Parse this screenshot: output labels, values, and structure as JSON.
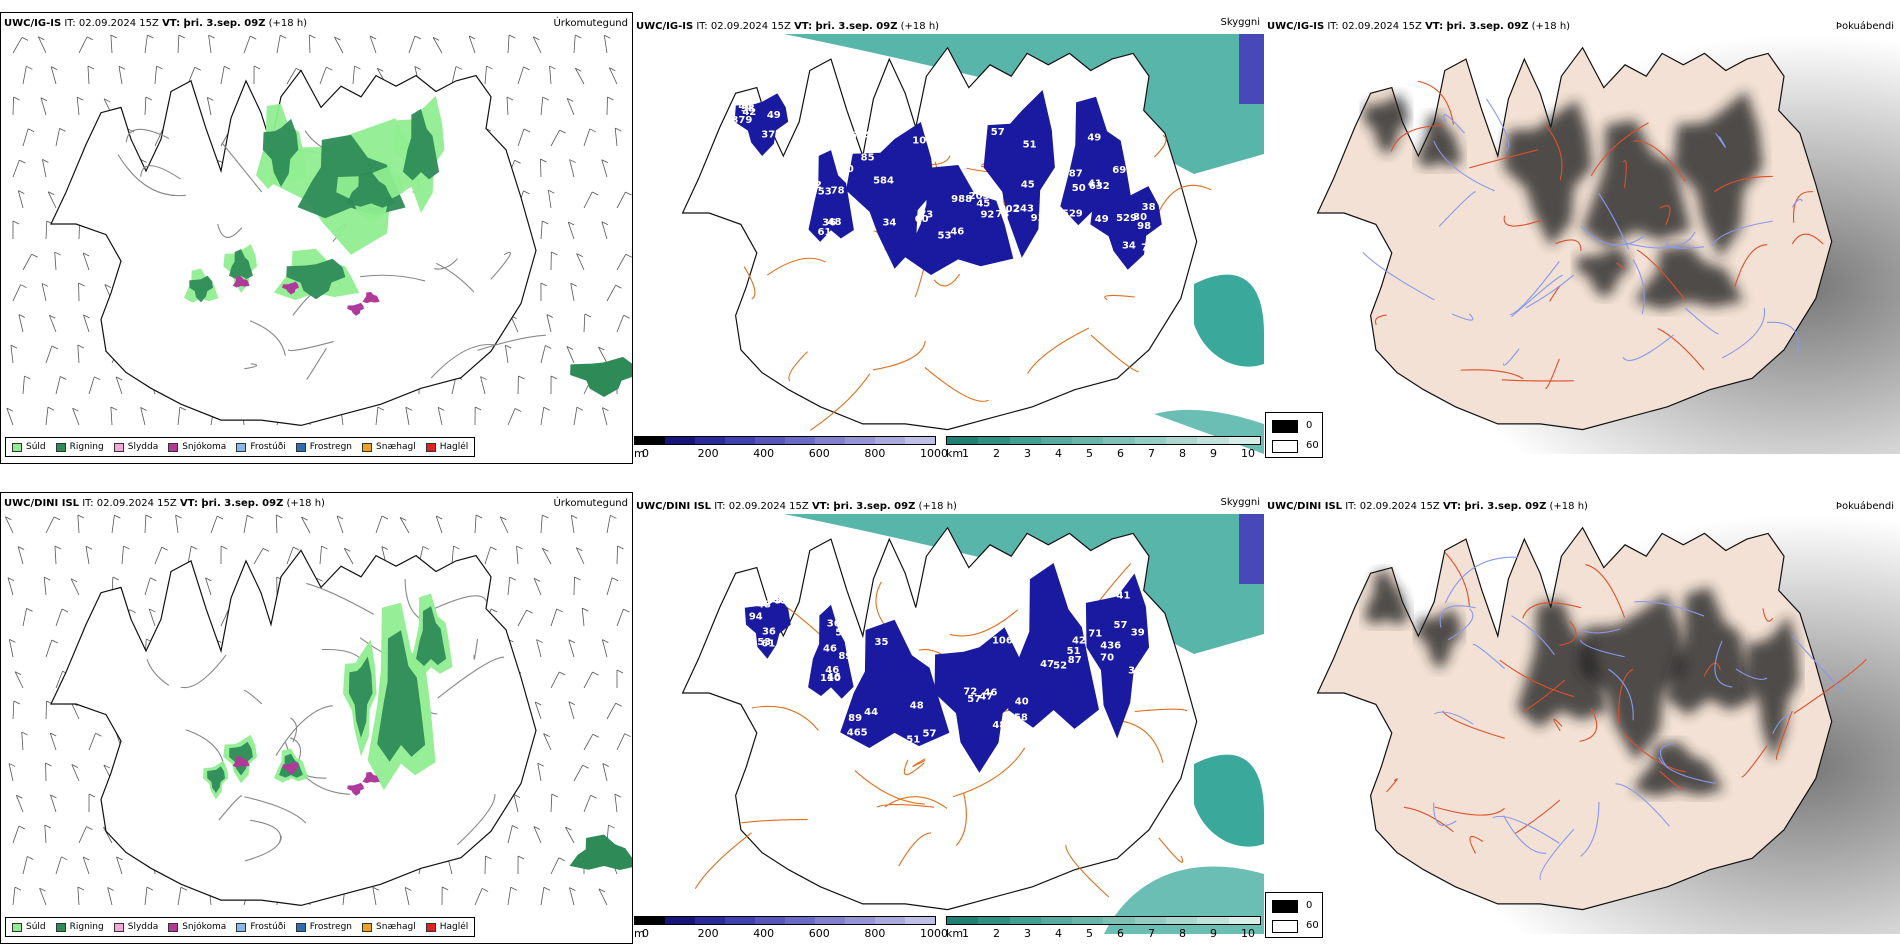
{
  "common": {
    "it_label": "IT:",
    "it_value": "02.09.2024 15Z",
    "vt_label": "VT: þri. 3.sep. 09Z",
    "lead": "(+18 h)"
  },
  "rows": [
    {
      "model": "UWC/IG-IS"
    },
    {
      "model": "UWC/DINI ISL"
    }
  ],
  "panel_names": {
    "precip": "Úrkomutegund",
    "visibility": "Skyggni",
    "fog": "Þokuábendi"
  },
  "precip_legend": [
    {
      "label": "Súld",
      "color": "#90ee90"
    },
    {
      "label": "Rigning",
      "color": "#2e8b57"
    },
    {
      "label": "Slydda",
      "color": "#f4a6d7"
    },
    {
      "label": "Snjókoma",
      "color": "#b03a9a"
    },
    {
      "label": "Frostúði",
      "color": "#87b7e8"
    },
    {
      "label": "Frostregn",
      "color": "#2f6db0"
    },
    {
      "label": "Snæhagl",
      "color": "#f0a020"
    },
    {
      "label": "Haglél",
      "color": "#e02020"
    }
  ],
  "colors": {
    "land_fog": "#f2e1d4",
    "roads": "#e07020",
    "rivers": "#8899ee",
    "cloud_low": "#1a1aa0",
    "sea_vis": "#3aa89a"
  },
  "cbar_m": {
    "unit": "m",
    "ticks": [
      "0",
      "200",
      "400",
      "600",
      "800",
      "1000"
    ],
    "colors": [
      "#000000",
      "#16167a",
      "#2a2a9a",
      "#3f3fae",
      "#5555bb",
      "#6a6ac4",
      "#8080cc",
      "#9595d4",
      "#aaaadd",
      "#c0c0e6"
    ]
  },
  "cbar_km": {
    "unit": "km",
    "ticks": [
      "1",
      "2",
      "3",
      "4",
      "5",
      "6",
      "7",
      "8",
      "9",
      "10"
    ],
    "colors": [
      "#1f7f73",
      "#2f8f83",
      "#3f9f93",
      "#55ab9f",
      "#6ab6ab",
      "#80c1b7",
      "#95ccc3",
      "#abd7cf",
      "#c0e2db",
      "#d6ede8"
    ]
  },
  "fog_key": {
    "dark": "0",
    "light": "60"
  },
  "labels_vis_top": [
    "654",
    "988",
    "243",
    "529",
    "529",
    "53",
    "49",
    "103",
    "73",
    "73",
    "69",
    "34",
    "36",
    "46",
    "34",
    "46",
    "57",
    "49",
    "30",
    "50",
    "42",
    "46",
    "53",
    "102",
    "632",
    "49",
    "61",
    "379",
    "85",
    "92",
    "51",
    "41",
    "78",
    "52",
    "38",
    "60",
    "45",
    "45",
    "50",
    "38",
    "48",
    "37",
    "584",
    "203",
    "93",
    "87",
    "98",
    "78"
  ],
  "labels_vis_bottom": [
    "57",
    "46",
    "58",
    "41",
    "46",
    "40",
    "82",
    "72",
    "42",
    "39",
    "46",
    "53",
    "89",
    "57",
    "51",
    "57",
    "46",
    "61",
    "48",
    "106",
    "52",
    "71",
    "89",
    "48",
    "51",
    "39",
    "87",
    "70",
    "59",
    "39",
    "465",
    "48",
    "40",
    "34",
    "36",
    "36",
    "44",
    "47",
    "47",
    "436",
    "110",
    "94",
    "35"
  ]
}
